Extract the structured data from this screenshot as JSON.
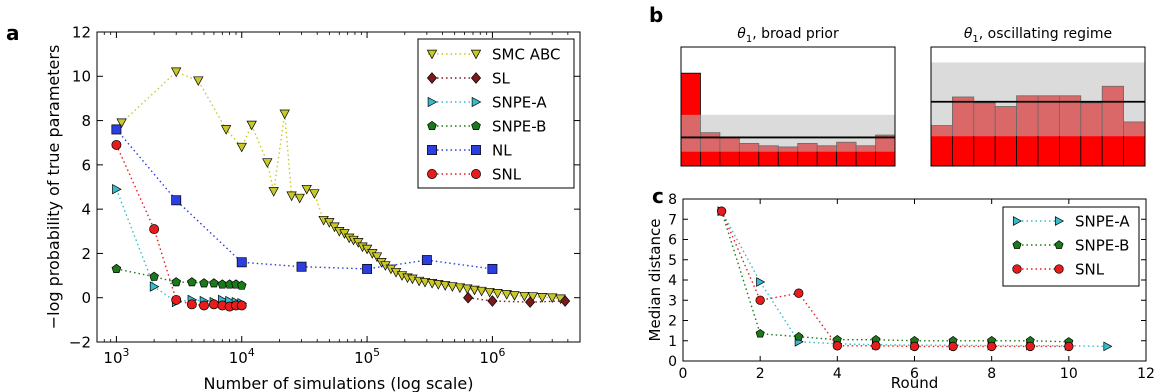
{
  "panel_labels": {
    "a": "a",
    "b": "b",
    "c": "c"
  },
  "chart_data": [
    {
      "panel": "a",
      "type": "line",
      "xlabel": "Number of simulations (log scale)",
      "ylabel": "−log probability of true parameters",
      "x_scale": "log",
      "xlim": [
        700,
        5000000
      ],
      "ylim": [
        -2,
        12
      ],
      "x_ticks": [
        1000,
        10000,
        100000,
        1000000
      ],
      "x_tick_labels": [
        {
          "base": "10",
          "exp": "3"
        },
        {
          "base": "10",
          "exp": "4"
        },
        {
          "base": "10",
          "exp": "5"
        },
        {
          "base": "10",
          "exp": "6"
        }
      ],
      "y_ticks": [
        -2,
        0,
        2,
        4,
        6,
        8,
        10,
        12
      ],
      "y_tick_labels": [
        "−2",
        "0",
        "2",
        "4",
        "6",
        "8",
        "10",
        "12"
      ],
      "grid": false,
      "legend_position": "top-right",
      "series": [
        {
          "name": "SMC ABC",
          "marker": "triangle-down",
          "color": "#c8c82a",
          "x": [
            1100,
            3000,
            4500,
            7500,
            10000,
            12000,
            16000,
            18000,
            22000,
            25000,
            29000,
            33000,
            38000,
            45000,
            50000,
            55000,
            60000,
            66000,
            72000,
            78000,
            85000,
            92000,
            100000,
            110000,
            120000,
            130000,
            140000,
            155000,
            170000,
            190000,
            210000,
            230000,
            260000,
            290000,
            330000,
            370000,
            420000,
            480000,
            550000,
            630000,
            720000,
            820000,
            950000,
            1100000,
            1300000,
            1500000,
            1800000,
            2100000,
            2500000,
            3000000,
            3500000
          ],
          "y": [
            7.9,
            10.2,
            9.8,
            7.6,
            6.8,
            7.8,
            6.1,
            4.8,
            8.3,
            4.6,
            4.5,
            4.9,
            4.7,
            3.5,
            3.4,
            3.2,
            3.0,
            2.9,
            2.7,
            2.6,
            2.5,
            2.3,
            2.2,
            2.0,
            1.85,
            1.6,
            1.45,
            1.3,
            1.15,
            1.0,
            0.9,
            0.85,
            0.75,
            0.7,
            0.65,
            0.6,
            0.55,
            0.5,
            0.45,
            0.4,
            0.35,
            0.3,
            0.25,
            0.2,
            0.15,
            0.1,
            0.07,
            0.05,
            0.02,
            0.0,
            -0.05
          ]
        },
        {
          "name": "SL",
          "marker": "diamond",
          "color": "#7a1a1a",
          "x": [
            640000,
            1000000,
            2000000,
            3800000
          ],
          "y": [
            0.0,
            -0.15,
            -0.2,
            -0.15
          ]
        },
        {
          "name": "SNPE-A",
          "marker": "triangle-right",
          "color": "#36bccc",
          "x": [
            1000,
            2000,
            3000,
            4000,
            5000,
            6000,
            7000,
            8000,
            9000,
            10000
          ],
          "y": [
            4.9,
            0.5,
            -0.2,
            -0.1,
            -0.15,
            -0.2,
            -0.1,
            -0.15,
            -0.2,
            -0.25
          ]
        },
        {
          "name": "SNPE-B",
          "marker": "pentagon",
          "color": "#1a7a1a",
          "x": [
            1000,
            2000,
            3000,
            4000,
            5000,
            6000,
            7000,
            8000,
            9000,
            10000
          ],
          "y": [
            1.3,
            0.95,
            0.7,
            0.7,
            0.65,
            0.65,
            0.6,
            0.6,
            0.6,
            0.55
          ]
        },
        {
          "name": "NL",
          "marker": "square",
          "color": "#2b3ee0",
          "x": [
            1000,
            3000,
            10000,
            30000,
            100000,
            300000,
            1000000
          ],
          "y": [
            7.6,
            4.4,
            1.6,
            1.4,
            1.3,
            1.7,
            1.3
          ]
        },
        {
          "name": "SNL",
          "marker": "circle",
          "color": "#e81c1c",
          "x": [
            1000,
            2000,
            3000,
            4000,
            5000,
            6000,
            7000,
            8000,
            9000,
            10000
          ],
          "y": [
            6.9,
            3.1,
            -0.1,
            -0.3,
            -0.35,
            -0.3,
            -0.35,
            -0.4,
            -0.35,
            -0.35
          ]
        }
      ]
    },
    {
      "panel": "b-left",
      "type": "bar",
      "title_symbol": "θ",
      "title_subscript": "1",
      "title_rest": ", broad prior",
      "bar_color": "#ff0000",
      "band_color": "#bdbdbd",
      "values": [
        0.78,
        0.28,
        0.24,
        0.19,
        0.17,
        0.16,
        0.19,
        0.17,
        0.2,
        0.17,
        0.26
      ],
      "reference_line": 0.24,
      "band_upper": 0.43,
      "band_lower": 0.12
    },
    {
      "panel": "b-right",
      "type": "bar",
      "title_symbol": "θ",
      "title_subscript": "1",
      "title_rest": ", oscillating regime",
      "bar_color": "#ff0000",
      "band_color": "#bdbdbd",
      "values": [
        0.34,
        0.58,
        0.53,
        0.5,
        0.59,
        0.59,
        0.59,
        0.53,
        0.67,
        0.37
      ],
      "reference_line": 0.54,
      "band_upper": 0.87,
      "band_lower": 0.25
    },
    {
      "panel": "c",
      "type": "line",
      "xlabel": "Round",
      "ylabel": "Median distance",
      "xlim": [
        0,
        12
      ],
      "ylim": [
        0,
        8
      ],
      "x_ticks": [
        0,
        2,
        4,
        6,
        8,
        10,
        12
      ],
      "y_ticks": [
        0,
        1,
        2,
        3,
        4,
        5,
        6,
        7,
        8
      ],
      "grid": false,
      "legend_position": "top-right",
      "series": [
        {
          "name": "SNPE-A",
          "marker": "triangle-right",
          "color": "#36bccc",
          "x": [
            1,
            2,
            3,
            4,
            5,
            6,
            7,
            8,
            9,
            10,
            11
          ],
          "y": [
            7.4,
            3.9,
            0.95,
            0.85,
            0.8,
            0.78,
            0.78,
            0.76,
            0.76,
            0.75,
            0.72
          ]
        },
        {
          "name": "SNPE-B",
          "marker": "pentagon",
          "color": "#1a7a1a",
          "x": [
            1,
            2,
            3,
            4,
            5,
            6,
            7,
            8,
            9,
            10
          ],
          "y": [
            7.4,
            1.35,
            1.2,
            1.05,
            1.05,
            1.0,
            1.0,
            1.0,
            1.0,
            0.95
          ]
        },
        {
          "name": "SNL",
          "marker": "circle",
          "color": "#e81c1c",
          "x": [
            1,
            2,
            3,
            4,
            5,
            6,
            7,
            8,
            9,
            10
          ],
          "y": [
            7.4,
            3.0,
            3.35,
            0.75,
            0.75,
            0.72,
            0.72,
            0.72,
            0.72,
            0.72
          ]
        }
      ]
    }
  ]
}
